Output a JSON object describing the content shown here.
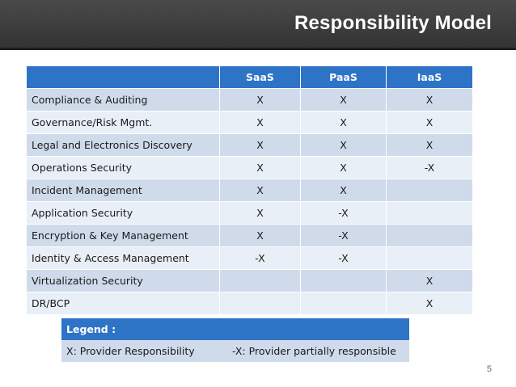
{
  "slide": {
    "title": "Responsibility Model",
    "page_number": "5"
  },
  "table": {
    "headers": [
      "",
      "SaaS",
      "PaaS",
      "IaaS"
    ],
    "rows": [
      {
        "label": "Compliance & Auditing",
        "saas": "X",
        "paas": "X",
        "iaas": "X"
      },
      {
        "label": "Governance/Risk Mgmt.",
        "saas": "X",
        "paas": "X",
        "iaas": "X"
      },
      {
        "label": "Legal and Electronics Discovery",
        "saas": "X",
        "paas": "X",
        "iaas": "X"
      },
      {
        "label": "Operations Security",
        "saas": "X",
        "paas": "X",
        "iaas": "-X"
      },
      {
        "label": "Incident Management",
        "saas": "X",
        "paas": "X",
        "iaas": ""
      },
      {
        "label": "Application Security",
        "saas": "X",
        "paas": "-X",
        "iaas": ""
      },
      {
        "label": "Encryption & Key Management",
        "saas": "X",
        "paas": "-X",
        "iaas": ""
      },
      {
        "label": "Identity & Access Management",
        "saas": "-X",
        "paas": "-X",
        "iaas": ""
      },
      {
        "label": "Virtualization Security",
        "saas": "",
        "paas": "",
        "iaas": "X"
      },
      {
        "label": "DR/BCP",
        "saas": "",
        "paas": "",
        "iaas": "X"
      }
    ]
  },
  "legend": {
    "title": "Legend :",
    "provider": "X: Provider Responsibility",
    "partial": "-X: Provider partially responsible"
  },
  "colors": {
    "header_blue": "#2e74c6",
    "row_dark": "#cfdbeb",
    "row_light": "#e9eff7",
    "title_bar": "#3a3a3a"
  }
}
